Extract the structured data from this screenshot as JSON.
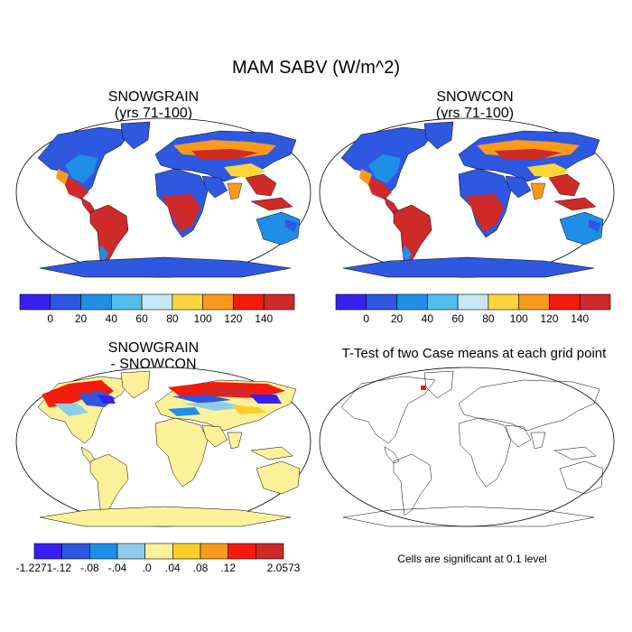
{
  "figure": {
    "title": "MAM SABV (W/m^2)"
  },
  "panels": [
    {
      "id": "snowgrain",
      "title_lines": [
        "SNOWGRAIN",
        "(yrs 71-100)"
      ]
    },
    {
      "id": "snowcon",
      "title_lines": [
        "SNOWCON",
        "(yrs 71-100)"
      ]
    },
    {
      "id": "difference",
      "title_lines": [
        "SNOWGRAIN",
        "- SNOWCON"
      ]
    },
    {
      "id": "ttest",
      "title_lines": [
        "T-Test of two Case means at each grid point"
      ],
      "note": "Cells are significant at 0.1 level"
    }
  ],
  "colorbars": {
    "absolute": {
      "colors": [
        "#3a1ef0",
        "#2e58e0",
        "#1e8ee8",
        "#55bcef",
        "#c6e8f6",
        "#fbd53a",
        "#f99a1c",
        "#f51b0c",
        "#cf2a2a"
      ],
      "labels": [
        "0",
        "20",
        "40",
        "60",
        "80",
        "100",
        "120",
        "140"
      ]
    },
    "difference": {
      "colors": [
        "#3a1ef0",
        "#2e58e0",
        "#1e8ee8",
        "#8fcdeb",
        "#fbf199",
        "#fbcf2a",
        "#f99a1c",
        "#f51b0c",
        "#cf2a2a"
      ],
      "labels": [
        "-1.2271",
        "-.12",
        "-.08",
        "-.04",
        ".0",
        ".04",
        ".08",
        ".12",
        "2.0573"
      ]
    }
  },
  "colors": {
    "land_hot": "#cf2a2a",
    "land_warm": "#f99a1c",
    "land_yellow": "#fbd53a",
    "land_cold": "#2e58e0",
    "land_mid": "#1e8ee8",
    "land_pale": "#fbf199",
    "outline": "#000000"
  }
}
